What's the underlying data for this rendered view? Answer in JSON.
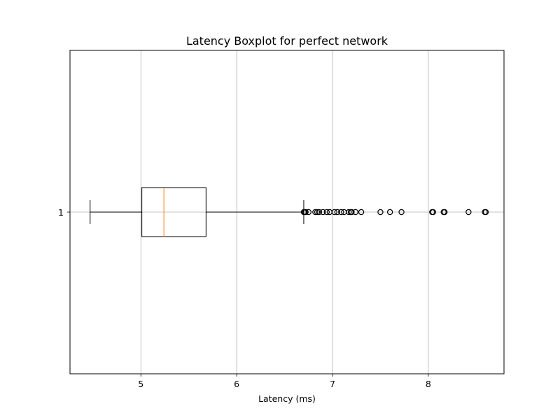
{
  "chart_data": {
    "type": "boxplot",
    "orientation": "horizontal",
    "title": "Latency Boxplot for perfect network",
    "xlabel": "Latency (ms)",
    "ylabel": "",
    "xlim": [
      4.26,
      8.79
    ],
    "grid": true,
    "categories": [
      "1"
    ],
    "x_ticks": [
      5,
      6,
      7,
      8
    ],
    "boxes": [
      {
        "label": "1",
        "whisker_low": 4.47,
        "q1": 5.01,
        "median": 5.24,
        "q3": 5.68,
        "whisker_high": 6.7,
        "outliers": [
          6.7,
          6.71,
          6.72,
          6.75,
          6.82,
          6.84,
          6.86,
          6.9,
          6.94,
          6.97,
          7.02,
          7.05,
          7.09,
          7.12,
          7.17,
          7.19,
          7.2,
          7.24,
          7.3,
          7.5,
          7.6,
          7.72,
          8.04,
          8.05,
          8.16,
          8.17,
          8.42,
          8.59,
          8.6
        ]
      }
    ],
    "colors": {
      "box": "#000000",
      "median": "#ff7f0e",
      "grid": "#b0b0b0"
    }
  }
}
